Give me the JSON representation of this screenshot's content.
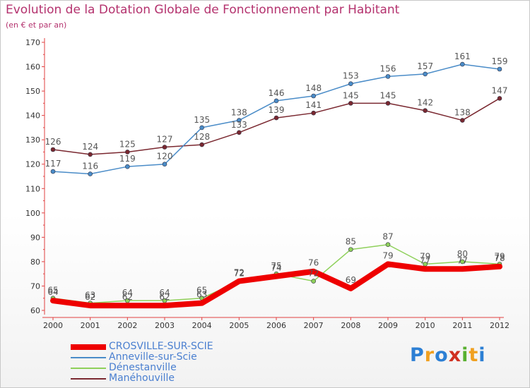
{
  "header": {
    "title": "Evolution de la Dotation Globale de Fonctionnement par Habitant",
    "subtitle": "(en € et par an)"
  },
  "brand": {
    "name": "Proxiti",
    "letters": [
      {
        "ch": "P",
        "color": "#2c7fd4"
      },
      {
        "ch": "r",
        "color": "#f0a020"
      },
      {
        "ch": "o",
        "color": "#2c7fd4"
      },
      {
        "ch": "x",
        "color": "#d03020"
      },
      {
        "ch": "i",
        "color": "#58b030"
      },
      {
        "ch": "t",
        "color": "#f0a020"
      },
      {
        "ch": "i",
        "color": "#2c7fd4"
      }
    ]
  },
  "chart_data": {
    "type": "line",
    "title": "Evolution de la Dotation Globale de Fonctionnement par Habitant",
    "subtitle": "(en € et par an)",
    "xlabel": "",
    "ylabel": "",
    "ylim": [
      60,
      170
    ],
    "yticks": [
      60,
      70,
      80,
      90,
      100,
      110,
      120,
      130,
      140,
      150,
      160,
      170
    ],
    "grid": false,
    "legend_position": "bottom-left",
    "categories": [
      "2000",
      "2001",
      "2002",
      "2003",
      "2004",
      "2005",
      "2006",
      "2007",
      "2008",
      "2009",
      "2010",
      "2011",
      "2012"
    ],
    "series": [
      {
        "name": "Manéhouville",
        "color": "#7a2830",
        "values": [
          126,
          124,
          125,
          127,
          128,
          133,
          139,
          141,
          145,
          145,
          142,
          138,
          147
        ]
      },
      {
        "name": "Anneville-sur-Scie",
        "color": "#4a8cc8",
        "values": [
          117,
          116,
          119,
          120,
          135,
          138,
          146,
          148,
          153,
          156,
          157,
          161,
          159
        ]
      },
      {
        "name": "Dénestanville",
        "color": "#8ed05a",
        "values": [
          65,
          63,
          64,
          64,
          65,
          72,
          75,
          72,
          85,
          87,
          79,
          80,
          79
        ]
      },
      {
        "name": "CROSVILLE-SUR-SCIE",
        "color": "#ee0000",
        "values": [
          64,
          62,
          62,
          62,
          63,
          72,
          74,
          76,
          69,
          79,
          77,
          77,
          78
        ]
      }
    ],
    "legend_order": [
      "CROSVILLE-SUR-SCIE",
      "Anneville-sur-Scie",
      "Dénestanville",
      "Manéhouville"
    ]
  }
}
